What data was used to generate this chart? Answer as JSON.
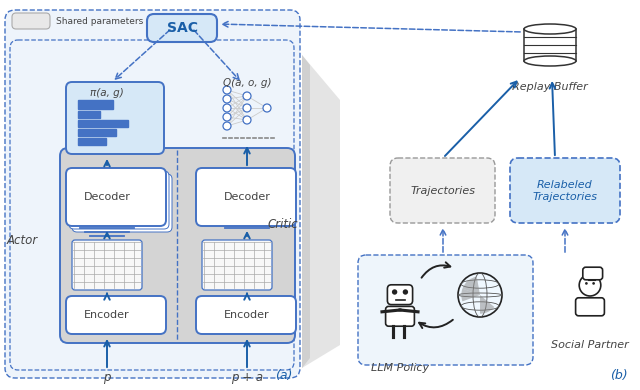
{
  "bg_color": "#ffffff",
  "blue_dark": "#1a5fa8",
  "blue_light": "#d6e8f7",
  "blue_mid": "#4472c4",
  "blue_box_fill": "#cce4f7",
  "gray_fill": "#d4d4d4",
  "gray_light": "#e8e8e8",
  "dashed_blue": "#4472c4",
  "white": "#ffffff",
  "text_dark": "#444444",
  "text_blue": "#1a5fa8",
  "grid_color": "#aaaaaa",
  "label_a": "(a)",
  "label_b": "(b)",
  "actor_label": "Actor",
  "critic_label": "Critic",
  "sac_label": "SAC",
  "shared_label": "Shared parameters",
  "decoder_label": "Decoder",
  "encoder_label": "Encoder",
  "replay_label": "Replay Buffer",
  "traj_label": "Trajectories",
  "relabeled_label": "Relabeled\nTrajectories",
  "llm_label": "LLM Policy",
  "social_label": "Social Partner",
  "p_label": "p",
  "pa_label": "p + a",
  "pi_label": "π(a, g)",
  "q_label": "Q(a, o, g)"
}
